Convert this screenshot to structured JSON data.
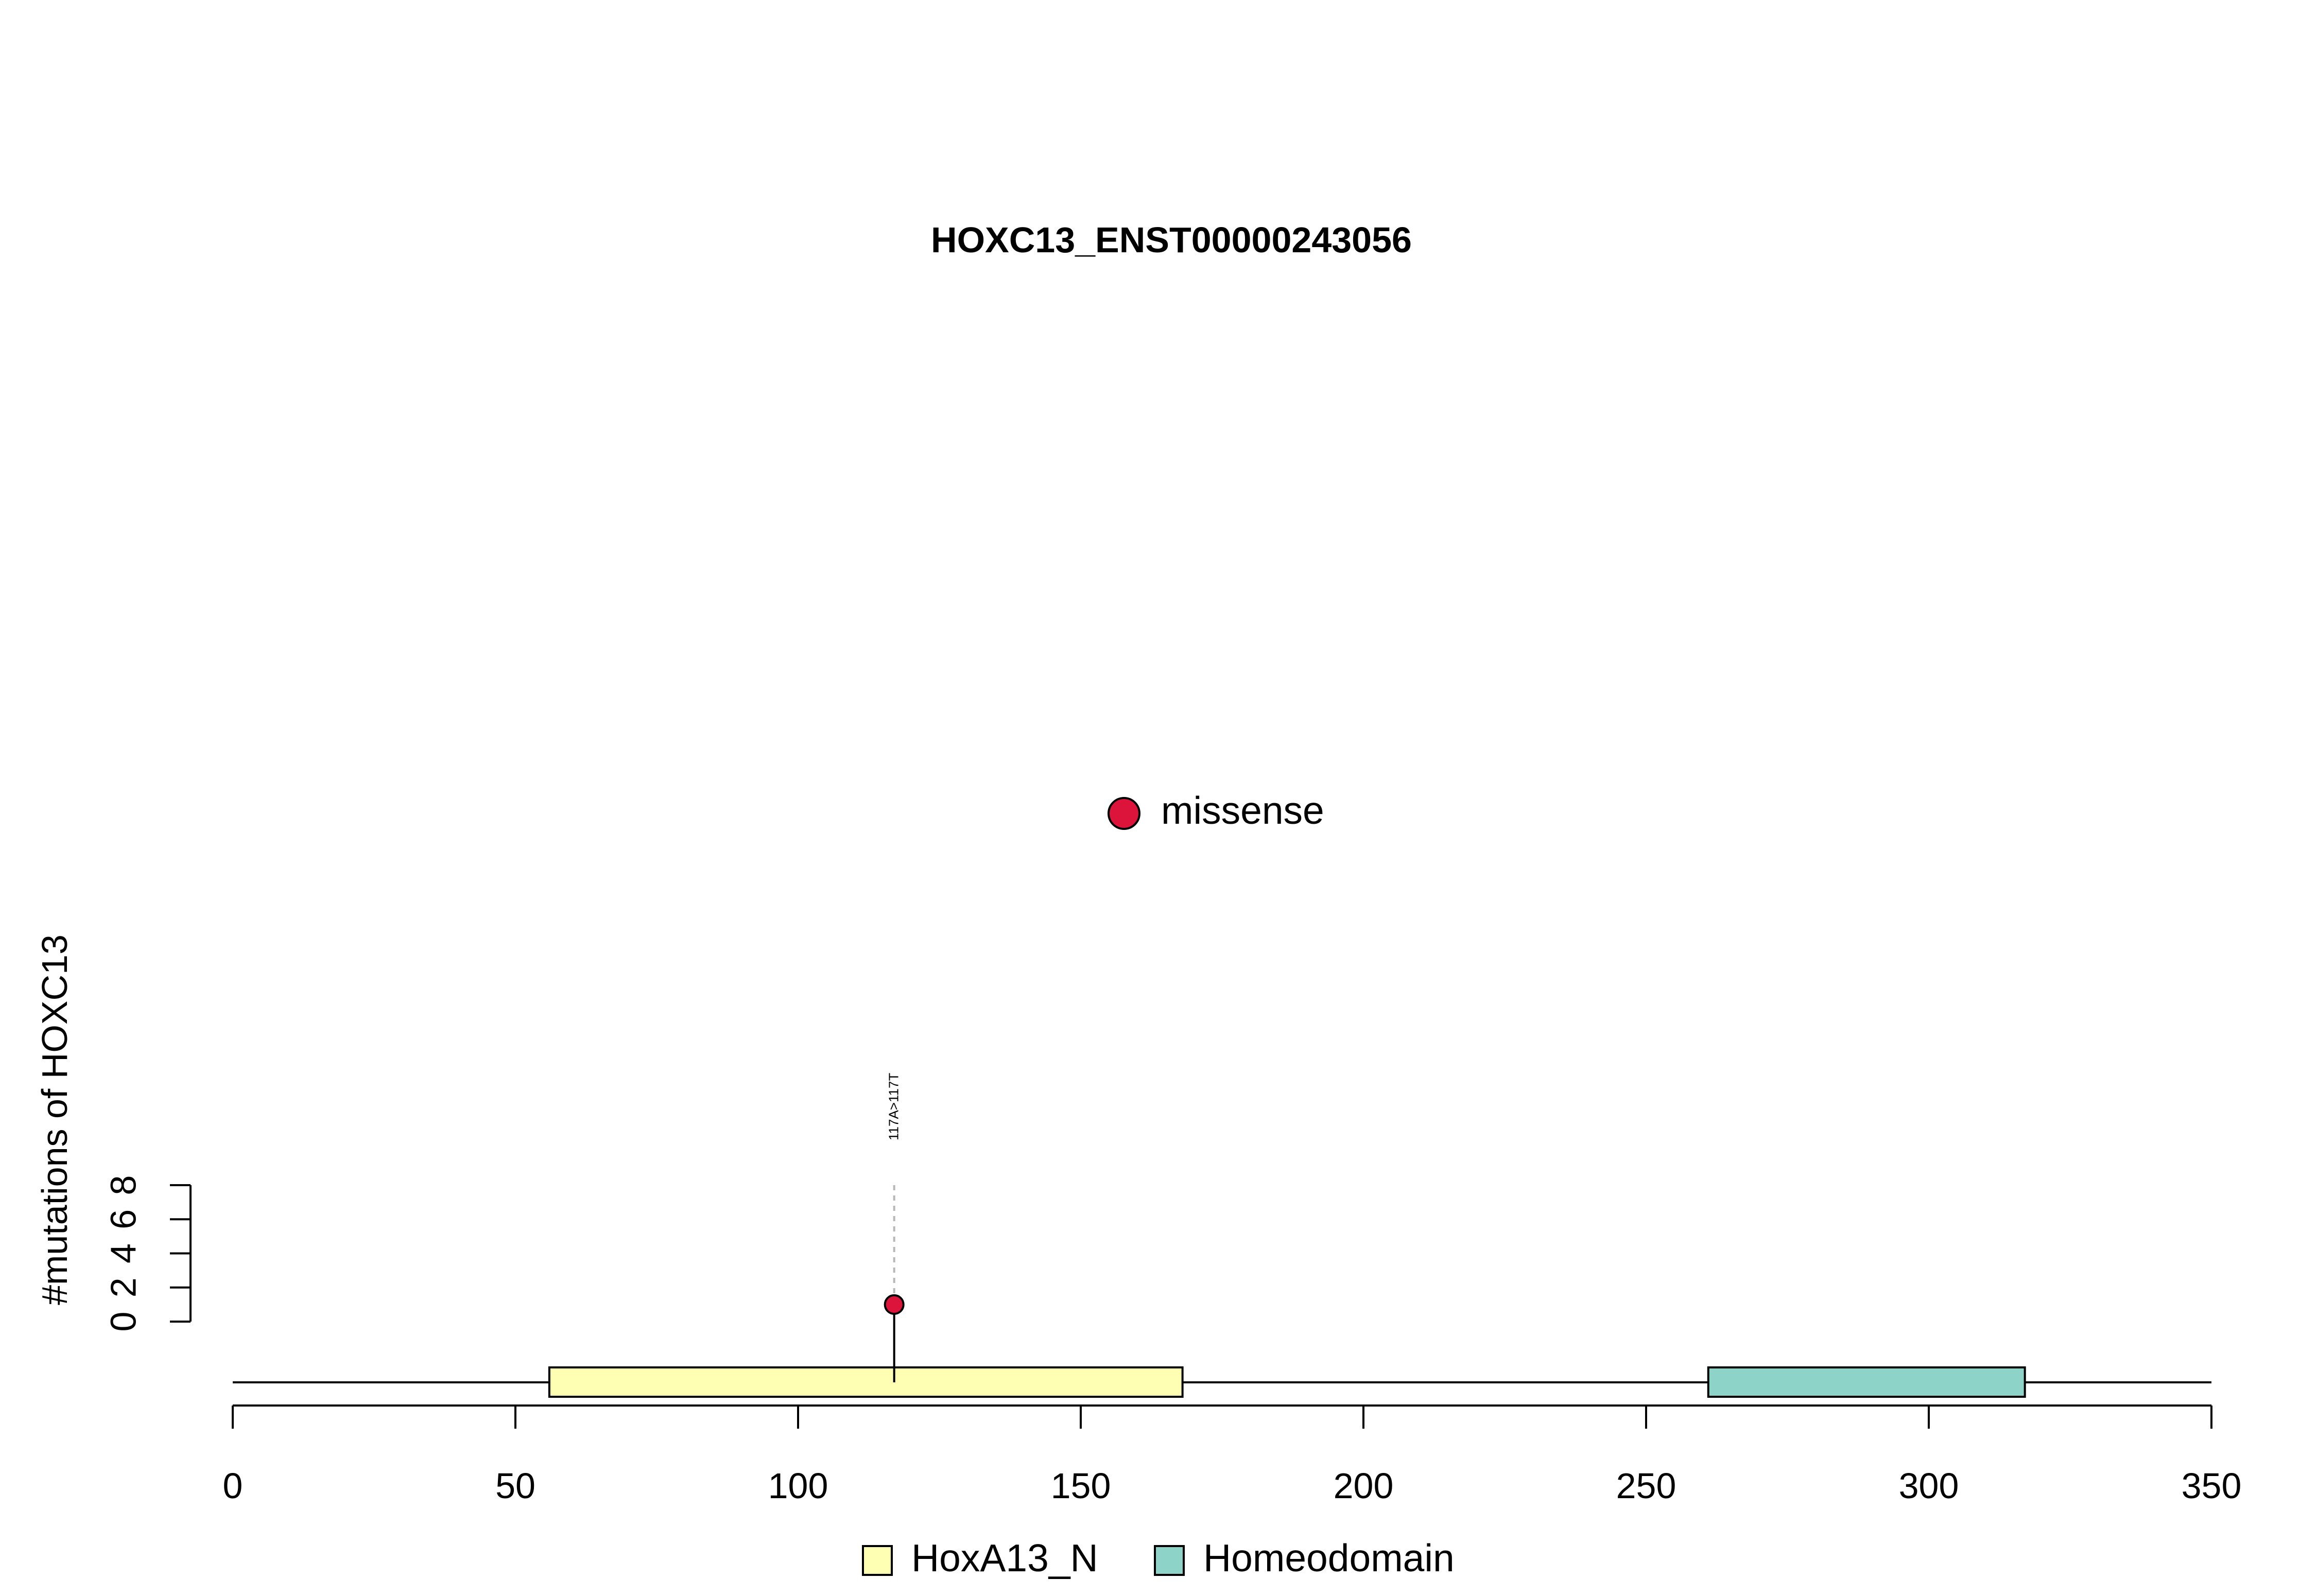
{
  "chart_data": {
    "type": "lollipop",
    "title": "HOXC13_ENST00000243056",
    "ylabel": "#mutations of HOXC13",
    "xlabel": "",
    "xlim": [
      0,
      350
    ],
    "ylim": [
      0,
      8
    ],
    "x_ticks": [
      "0",
      "50",
      "100",
      "150",
      "200",
      "250",
      "300",
      "350"
    ],
    "y_ticks": [
      "0",
      "2",
      "4",
      "6",
      "8"
    ],
    "protein_length": 350,
    "domains": [
      {
        "name": "HoxA13_N",
        "start": 56,
        "end": 168,
        "color": "#FFFFB3"
      },
      {
        "name": "Homeodomain",
        "start": 261,
        "end": 317,
        "color": "#8DD3C7"
      }
    ],
    "mutations": [
      {
        "position": 117,
        "count": 1,
        "label": "117A>117T",
        "type": "missense",
        "color": "#DC143C"
      }
    ],
    "mutation_legend": [
      {
        "name": "missense",
        "color": "#DC143C"
      }
    ],
    "domain_legend": [
      {
        "name": "HoxA13_N",
        "color": "#FFFFB3"
      },
      {
        "name": "Homeodomain",
        "color": "#8DD3C7"
      }
    ]
  }
}
